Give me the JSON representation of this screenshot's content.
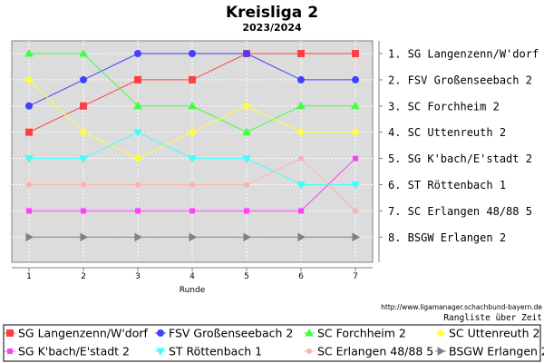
{
  "chart_data": {
    "type": "line",
    "title": "Kreisliga 2",
    "subtitle": "2023/2024",
    "xlabel": "Runde",
    "ylabel": "",
    "x": [
      1,
      2,
      3,
      4,
      5,
      6,
      7
    ],
    "xlim": [
      1,
      7
    ],
    "ylim": [
      1,
      8
    ],
    "y_inverted": true,
    "grid": true,
    "legend_position": "bottom",
    "right_axis_labels": [
      "1. SG Langenzenn/W'dorf",
      "2. FSV Großenseebach 2",
      "3. SC Forchheim 2",
      "4. SC Uttenreuth 2",
      "5. SG K'bach/E'stadt 2",
      "6. ST Röttenbach 1",
      "7. SC Erlangen 48/88 5",
      "8. BSGW Erlangen 2"
    ],
    "source_url": "http://www.ligamanager.schachbund-bayern.de",
    "source_caption": "Rangliste über Zeit",
    "series": [
      {
        "name": "SG Langenzenn/W'dorf",
        "color": "#ff4040",
        "marker": "square",
        "values": [
          4,
          3,
          2,
          2,
          1,
          1,
          1
        ]
      },
      {
        "name": "FSV Großenseebach 2",
        "color": "#4040ff",
        "marker": "circle",
        "values": [
          3,
          2,
          1,
          1,
          1,
          2,
          2
        ]
      },
      {
        "name": "SC Forchheim 2",
        "color": "#40ff40",
        "marker": "triangle-up",
        "values": [
          1,
          1,
          3,
          3,
          4,
          3,
          3
        ]
      },
      {
        "name": "SC Uttenreuth 2",
        "color": "#ffff40",
        "marker": "diamond",
        "values": [
          2,
          4,
          5,
          4,
          3,
          4,
          4
        ]
      },
      {
        "name": "SG K'bach/E'stadt 2",
        "color": "#ff40ff",
        "marker": "square-small",
        "values": [
          7,
          7,
          7,
          7,
          7,
          7,
          5
        ]
      },
      {
        "name": "ST Röttenbach 1",
        "color": "#40ffff",
        "marker": "triangle-down",
        "values": [
          5,
          5,
          4,
          5,
          5,
          6,
          6
        ]
      },
      {
        "name": "SC Erlangen 48/88 5",
        "color": "#ffafaf",
        "marker": "circle-small",
        "values": [
          6,
          6,
          6,
          6,
          6,
          5,
          7
        ]
      },
      {
        "name": "BSGW Erlangen 2",
        "color": "#808080",
        "marker": "triangle-right",
        "values": [
          8,
          8,
          8,
          8,
          8,
          8,
          8
        ]
      }
    ]
  }
}
